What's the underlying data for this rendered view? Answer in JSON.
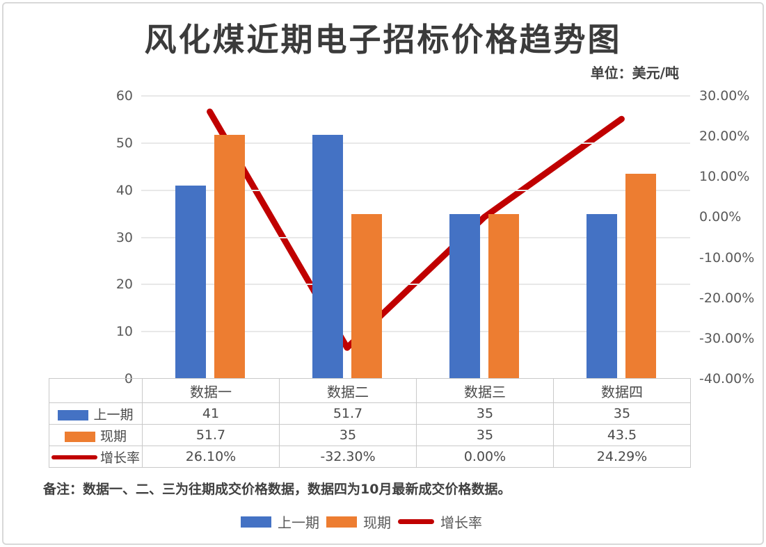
{
  "title": "风化煤近期电子招标价格趋势图",
  "unit_label": "单位：美元/吨",
  "note": "备注：数据一、二、三为往期成交价格数据，数据四为10月最新成交价格数据。",
  "colors": {
    "previous_bar": "#4472C4",
    "current_bar": "#ED7D31",
    "growth_line": "#C00000",
    "gridline": "#e8e8e8",
    "table_border": "#c9c9c9",
    "text_dark": "#404040",
    "text_gray": "#595959"
  },
  "legend": {
    "items": [
      {
        "key": "previous",
        "label": "上一期",
        "type": "bar",
        "color": "#4472C4"
      },
      {
        "key": "current",
        "label": "现期",
        "type": "bar",
        "color": "#ED7D31"
      },
      {
        "key": "growth",
        "label": "增长率",
        "type": "line",
        "color": "#C00000"
      }
    ]
  },
  "table": {
    "categories": [
      "数据一",
      "数据二",
      "数据三",
      "数据四"
    ],
    "rows": [
      {
        "label": "上一期",
        "values": [
          "41",
          "51.7",
          "35",
          "35"
        ]
      },
      {
        "label": "现期",
        "values": [
          "51.7",
          "35",
          "35",
          "43.5"
        ]
      },
      {
        "label": "增长率",
        "values": [
          "26.10%",
          "-32.30%",
          "0.00%",
          "24.29%"
        ]
      }
    ]
  },
  "chart_data": {
    "type": "bar+line combo",
    "title": "风化煤近期电子招标价格趋势图",
    "unit": "美元/吨",
    "categories": [
      "数据一",
      "数据二",
      "数据三",
      "数据四"
    ],
    "series": [
      {
        "key": "previous",
        "name": "上一期",
        "type": "bar",
        "axis": "left",
        "color": "#4472C4",
        "values": [
          41,
          51.7,
          35,
          35
        ]
      },
      {
        "key": "current",
        "name": "现期",
        "type": "bar",
        "axis": "left",
        "color": "#ED7D31",
        "values": [
          51.7,
          35,
          35,
          43.5
        ]
      },
      {
        "key": "growth",
        "name": "增长率",
        "type": "line",
        "axis": "right",
        "color": "#C00000",
        "values_pct": [
          26.1,
          -32.3,
          0.0,
          24.29
        ]
      }
    ],
    "axis_left": {
      "min": 0,
      "max": 60,
      "ticks": [
        "60",
        "50",
        "40",
        "30",
        "20",
        "10",
        "0"
      ]
    },
    "axis_right": {
      "min": -40,
      "max": 30,
      "ticks": [
        "30.00%",
        "20.00%",
        "10.00%",
        "0.00%",
        "-10.00%",
        "-20.00%",
        "-30.00%",
        "-40.00%"
      ]
    },
    "grid": "horizontal",
    "legend_position": "bottom",
    "data_table_shown": true
  }
}
